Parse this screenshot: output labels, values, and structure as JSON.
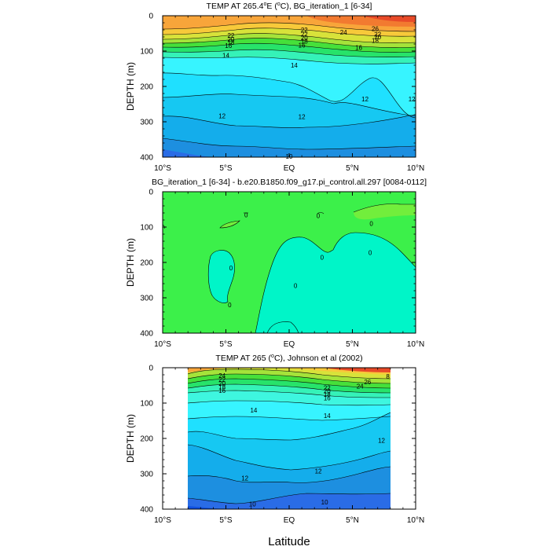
{
  "chart_data": [
    {
      "type": "contour",
      "title": "TEMP AT 265.4°E (°C), BG_iteration_1 [6-34]",
      "title_parts": {
        "pre": "TEMP AT 265.4",
        "deg": "o",
        "mid": "E (",
        "deg2": "o",
        "post": "C), BG_iteration_1 [6-34]"
      },
      "xlabel": "",
      "ylabel": "DEPTH (m)",
      "xlim": [
        -10,
        10
      ],
      "ylim": [
        400,
        0
      ],
      "x_ticks": [
        -10,
        -5,
        0,
        5,
        10
      ],
      "x_tick_labels": [
        "10°S",
        "5°S",
        "EQ",
        "5°N",
        "10°N"
      ],
      "y_ticks": [
        0,
        100,
        200,
        300,
        400
      ],
      "y_tick_labels": [
        "0",
        "100",
        "200",
        "300",
        "400"
      ],
      "contour_labels": [
        {
          "text": "22",
          "x": -4.6,
          "y": 55
        },
        {
          "text": "20",
          "x": -4.6,
          "y": 67
        },
        {
          "text": "18",
          "x": -4.6,
          "y": 76
        },
        {
          "text": "16",
          "x": -4.8,
          "y": 84
        },
        {
          "text": "14",
          "x": -5.0,
          "y": 112
        },
        {
          "text": "22",
          "x": 1.2,
          "y": 40
        },
        {
          "text": "22",
          "x": 1.2,
          "y": 52
        },
        {
          "text": "20",
          "x": 1.2,
          "y": 62
        },
        {
          "text": "18",
          "x": 1.2,
          "y": 72
        },
        {
          "text": "16",
          "x": 1.0,
          "y": 83
        },
        {
          "text": "24",
          "x": 4.3,
          "y": 47
        },
        {
          "text": "26",
          "x": 6.8,
          "y": 37
        },
        {
          "text": "22",
          "x": 7.0,
          "y": 52
        },
        {
          "text": "20",
          "x": 7.0,
          "y": 60
        },
        {
          "text": "18",
          "x": 6.8,
          "y": 70
        },
        {
          "text": "16",
          "x": 5.5,
          "y": 90
        },
        {
          "text": "14",
          "x": 0.4,
          "y": 140
        },
        {
          "text": "12",
          "x": 6.0,
          "y": 235
        },
        {
          "text": "12",
          "x": 9.7,
          "y": 235
        },
        {
          "text": "12",
          "x": -5.3,
          "y": 283
        },
        {
          "text": "12",
          "x": 1.0,
          "y": 285
        },
        {
          "text": "10",
          "x": 0.0,
          "y": 398
        }
      ]
    },
    {
      "type": "contour",
      "title": "BG_iteration_1 [6-34] - b.e20.B1850.f09_g17.pi_control.all.297 [0084-0112]",
      "xlabel": "",
      "ylabel": "DEPTH (m)",
      "xlim": [
        -10,
        10
      ],
      "ylim": [
        400,
        0
      ],
      "x_ticks": [
        -10,
        -5,
        0,
        5,
        10
      ],
      "x_tick_labels": [
        "10°S",
        "5°S",
        "EQ",
        "5°N",
        "10°N"
      ],
      "y_ticks": [
        0,
        100,
        200,
        300,
        400
      ],
      "y_tick_labels": [
        "0",
        "100",
        "200",
        "300",
        "400"
      ],
      "contour_labels": [
        {
          "text": "0",
          "x": -3.4,
          "y": 65
        },
        {
          "text": "0",
          "x": 2.3,
          "y": 68
        },
        {
          "text": "0",
          "x": 6.5,
          "y": 90
        },
        {
          "text": "0",
          "x": -4.6,
          "y": 215
        },
        {
          "text": "0",
          "x": 2.6,
          "y": 185
        },
        {
          "text": "0",
          "x": 6.4,
          "y": 172
        },
        {
          "text": "0",
          "x": 0.5,
          "y": 265
        },
        {
          "text": "0",
          "x": -4.7,
          "y": 320
        }
      ]
    },
    {
      "type": "contour",
      "title": "TEMP AT 265 (°C), Johnson et al (2002)",
      "title_parts": {
        "pre": "TEMP AT 265 (",
        "deg": "o",
        "post": "C), Johnson et al (2002)"
      },
      "xlabel": "Latitude",
      "ylabel": "DEPTH (m)",
      "xlim": [
        -10,
        10
      ],
      "ylim": [
        400,
        0
      ],
      "data_xlim": [
        -8,
        8
      ],
      "x_ticks": [
        -10,
        -5,
        0,
        5,
        10
      ],
      "x_tick_labels": [
        "10°S",
        "5°S",
        "EQ",
        "5°N",
        "10°N"
      ],
      "y_ticks": [
        0,
        100,
        200,
        300,
        400
      ],
      "y_tick_labels": [
        "0",
        "100",
        "200",
        "300",
        "400"
      ],
      "contour_labels": [
        {
          "text": "24",
          "x": -5.3,
          "y": 22
        },
        {
          "text": "22",
          "x": -5.3,
          "y": 33
        },
        {
          "text": "20",
          "x": -5.3,
          "y": 44
        },
        {
          "text": "18",
          "x": -5.3,
          "y": 54
        },
        {
          "text": "16",
          "x": -5.3,
          "y": 64
        },
        {
          "text": "24",
          "x": 5.6,
          "y": 52
        },
        {
          "text": "22",
          "x": 3.0,
          "y": 57
        },
        {
          "text": "20",
          "x": 3.0,
          "y": 66
        },
        {
          "text": "18",
          "x": 3.0,
          "y": 76
        },
        {
          "text": "16",
          "x": 3.0,
          "y": 85
        },
        {
          "text": "26",
          "x": 6.2,
          "y": 40
        },
        {
          "text": "8",
          "x": 7.8,
          "y": 24
        },
        {
          "text": "14",
          "x": -2.8,
          "y": 120
        },
        {
          "text": "14",
          "x": 3.0,
          "y": 135
        },
        {
          "text": "12",
          "x": 7.3,
          "y": 205
        },
        {
          "text": "12",
          "x": -3.5,
          "y": 312
        },
        {
          "text": "12",
          "x": 2.3,
          "y": 292
        },
        {
          "text": "10",
          "x": -2.9,
          "y": 385
        },
        {
          "text": "10",
          "x": 2.8,
          "y": 380
        }
      ]
    }
  ]
}
